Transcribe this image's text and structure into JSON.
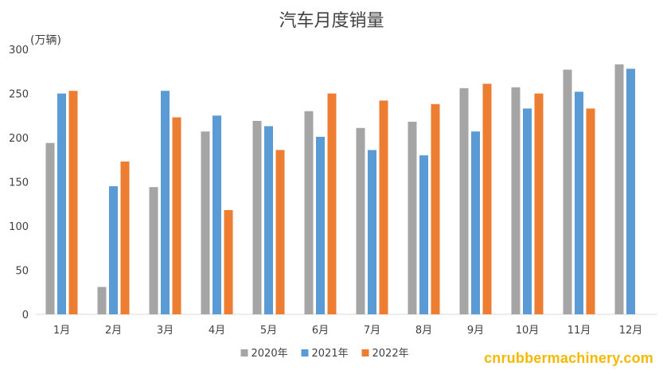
{
  "chart_data": {
    "type": "bar",
    "title": "汽车月度销量",
    "unit_label": "(万辆)",
    "categories": [
      "1月",
      "2月",
      "3月",
      "4月",
      "5月",
      "6月",
      "7月",
      "8月",
      "9月",
      "10月",
      "11月",
      "12月"
    ],
    "ylim": [
      0,
      300
    ],
    "yticks": [
      0,
      50,
      100,
      150,
      200,
      250,
      300
    ],
    "grid": false,
    "legend_position": "bottom",
    "series": [
      {
        "name": "2020年",
        "color": "#a5a5a5",
        "values": [
          194,
          31,
          144,
          207,
          219,
          230,
          211,
          218,
          256,
          257,
          277,
          283
        ]
      },
      {
        "name": "2021年",
        "color": "#5b9bd5",
        "values": [
          250,
          145,
          253,
          225,
          213,
          201,
          186,
          180,
          207,
          233,
          252,
          278
        ]
      },
      {
        "name": "2022年",
        "color": "#ed7d31",
        "values": [
          253,
          173,
          223,
          118,
          186,
          250,
          242,
          238,
          261,
          250,
          233,
          null
        ]
      }
    ]
  },
  "watermark": "cnrubbermachinery.com"
}
